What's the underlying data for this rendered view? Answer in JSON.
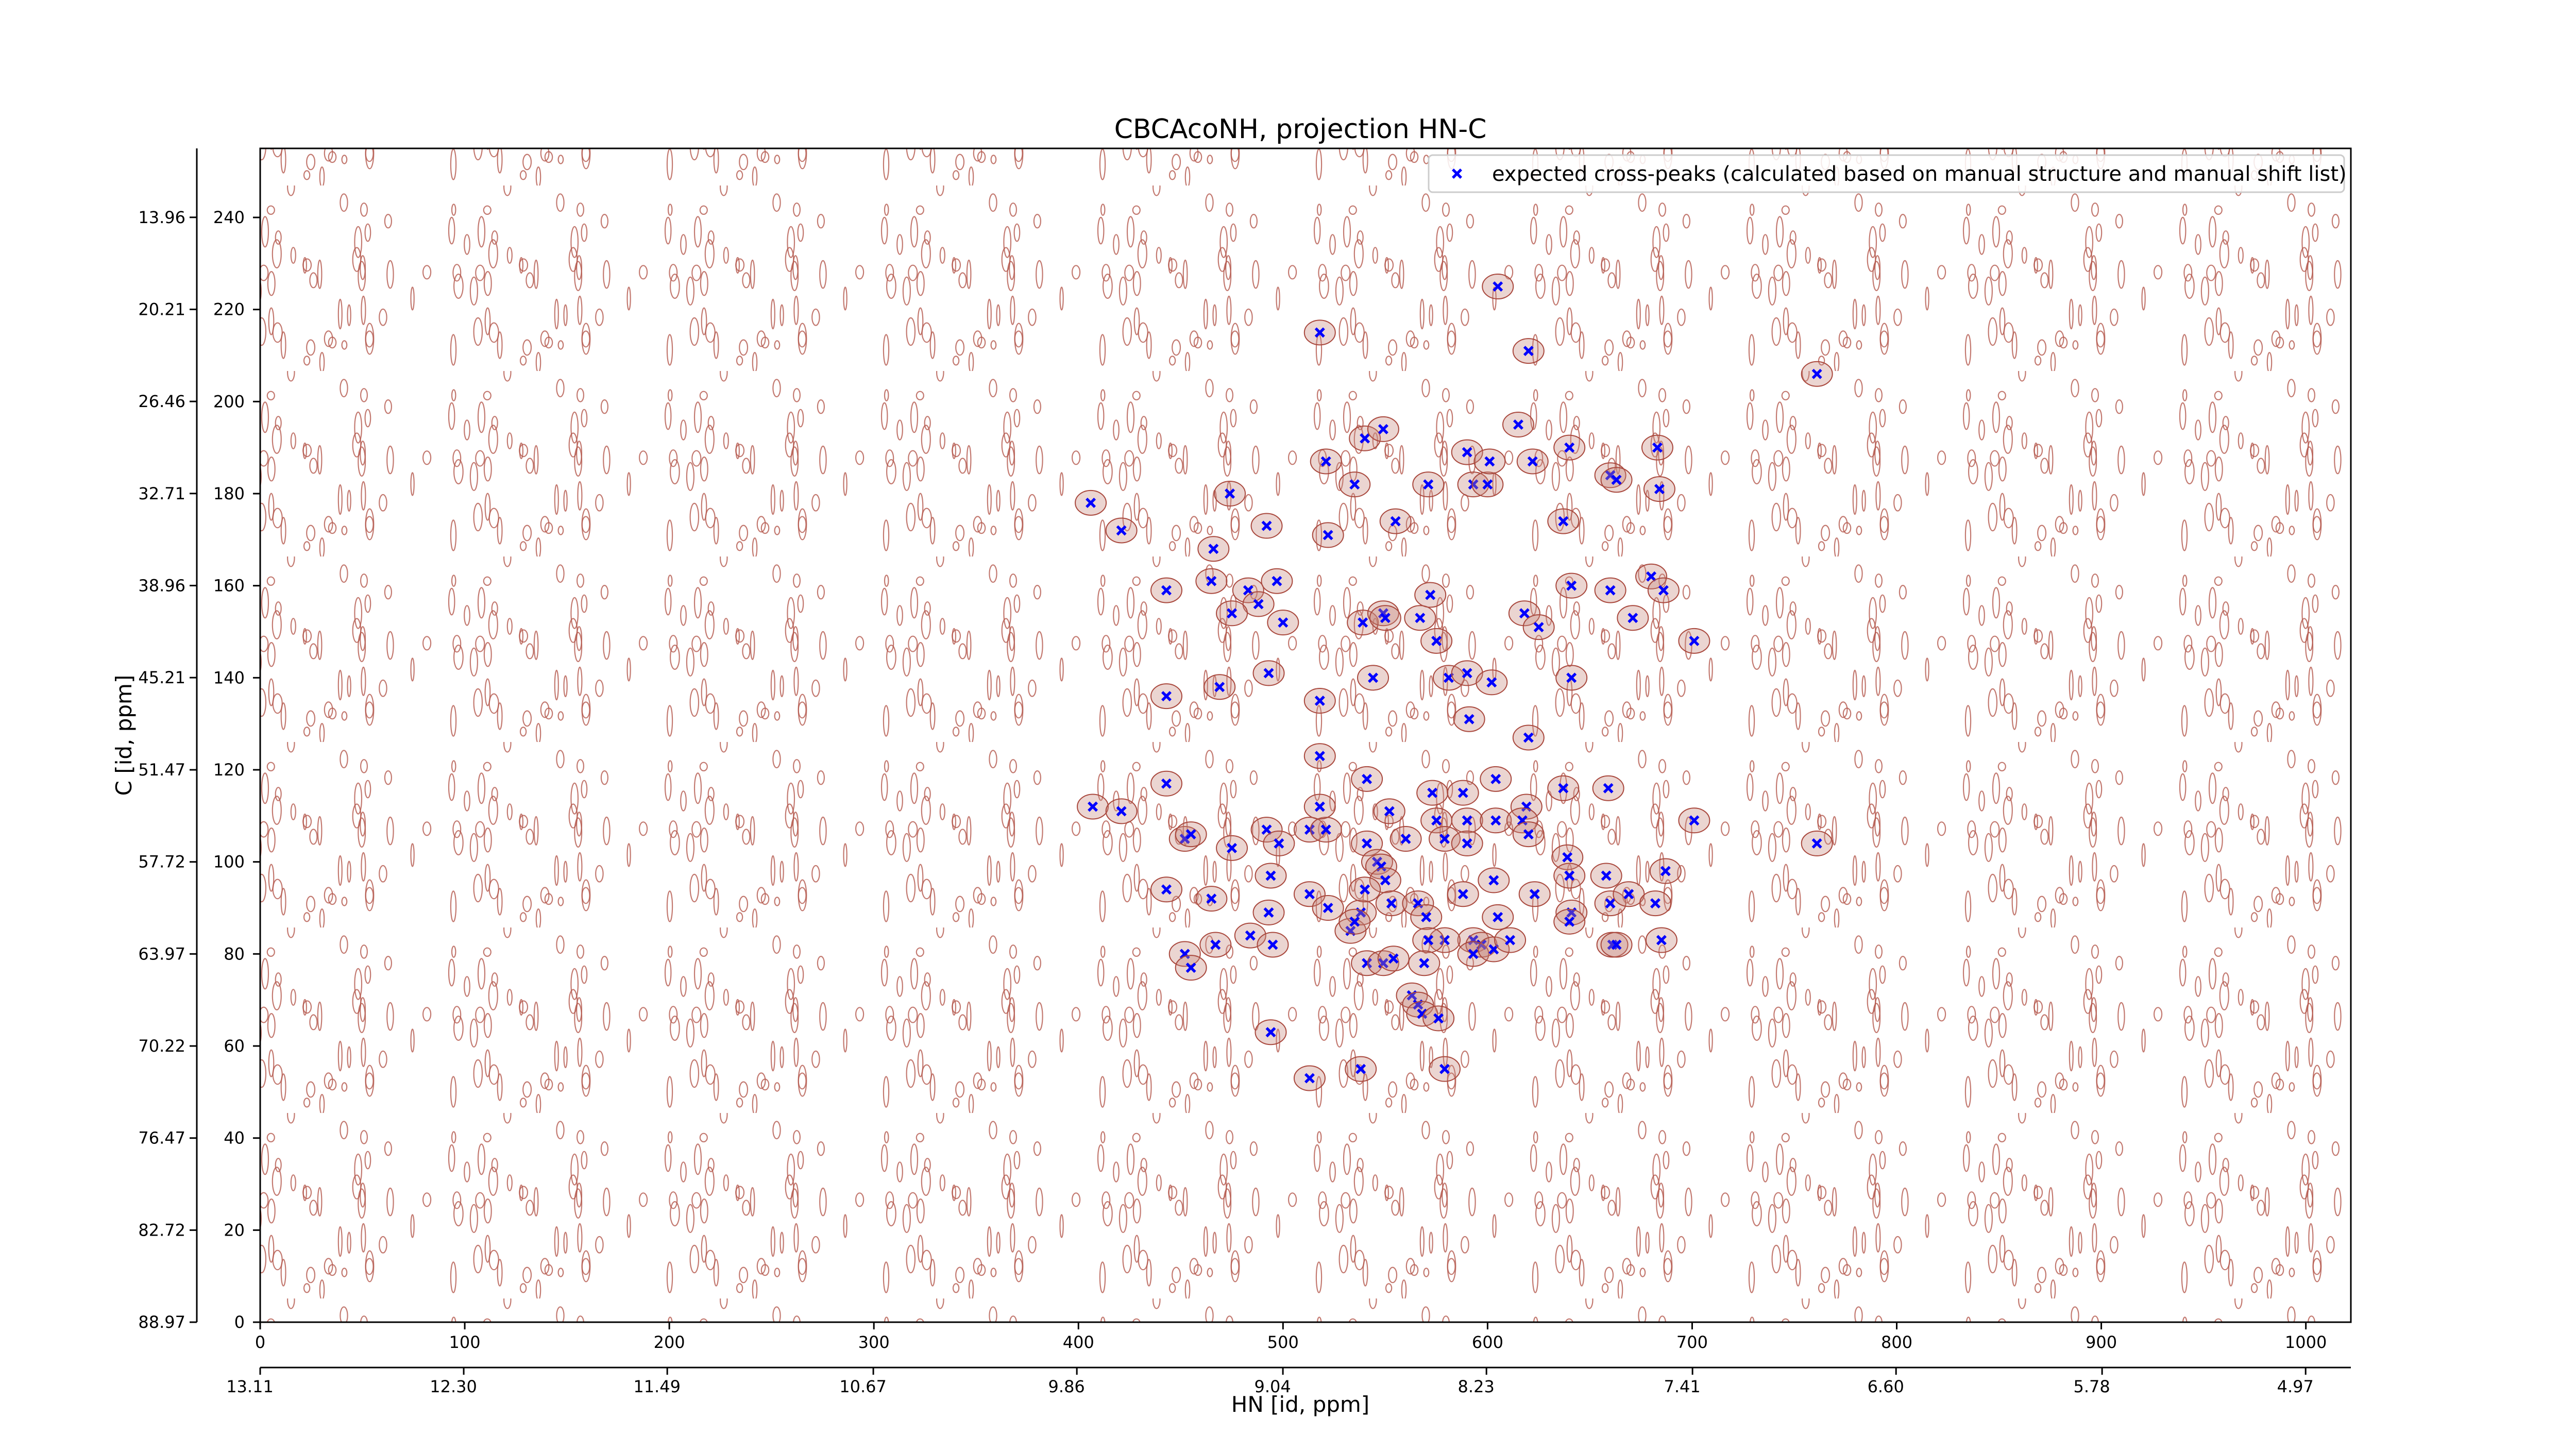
{
  "chart_data": {
    "type": "scatter",
    "title": "CBCAcoNH, projection HN-C",
    "x_label": "HN [id, ppm]",
    "y_label": "C [id, ppm]",
    "xlim": [
      0,
      1022
    ],
    "ylim": [
      0,
      255
    ],
    "xticks": [
      0,
      100,
      200,
      300,
      400,
      500,
      600,
      700,
      800,
      900,
      1000
    ],
    "yticks": [
      0,
      20,
      40,
      60,
      80,
      100,
      120,
      140,
      160,
      180,
      200,
      220,
      240
    ],
    "x2lim": [
      13.11,
      4.79
    ],
    "x2ticks": [
      13.11,
      {
        "value": 12.3,
        "label": "12.30"
      },
      11.49,
      10.67,
      9.86,
      9.04,
      8.23,
      7.41,
      {
        "value": 6.6,
        "label": "6.60"
      },
      5.78,
      4.97
    ],
    "y2lim": [
      88.97,
      9.28
    ],
    "y2ticks": [
      88.97,
      82.72,
      76.47,
      70.22,
      63.97,
      57.72,
      51.47,
      45.21,
      38.96,
      32.71,
      26.46,
      20.21,
      13.96
    ],
    "legend": "upper right",
    "series": [
      {
        "name": "expected cross-peaks (calculated based on manual structure and manual shift list)",
        "color": "#0000ff",
        "x": [
          406,
          421,
          474,
          466,
          443,
          465,
          483,
          488,
          475,
          492,
          497,
          500,
          493,
          469,
          443,
          518,
          521,
          522,
          535,
          540,
          549,
          555,
          539,
          549,
          550,
          567,
          572,
          575,
          544,
          518,
          571,
          590,
          593,
          600,
          601,
          615,
          605,
          620,
          622,
          640,
          660,
          663,
          683,
          684,
          637,
          641,
          618,
          625,
          660,
          671,
          680,
          686,
          701,
          761,
          581,
          590,
          602,
          591,
          620,
          641,
          518,
          541,
          552,
          573,
          588,
          604,
          619,
          637,
          659,
          701,
          761,
          407,
          421,
          443,
          452,
          455,
          475,
          492,
          494,
          498,
          513,
          521,
          518,
          541,
          546,
          548,
          550,
          560,
          575,
          579,
          590,
          590,
          604,
          617,
          620,
          639,
          640,
          658,
          687,
          443,
          465,
          484,
          493,
          513,
          522,
          533,
          538,
          540,
          553,
          566,
          570,
          588,
          603,
          605,
          623,
          641,
          660,
          669,
          682,
          593,
          597,
          593,
          579,
          571,
          603,
          611,
          640,
          661,
          663,
          685,
          495,
          452,
          455,
          467,
          535,
          541,
          549,
          554,
          569,
          563,
          566,
          568,
          576,
          494,
          513,
          538,
          579
        ],
        "values": [
          178,
          172,
          180,
          168,
          159,
          161,
          159,
          156,
          154,
          173,
          161,
          152,
          141,
          138,
          136,
          215,
          187,
          171,
          182,
          192,
          194,
          174,
          152,
          154,
          153,
          153,
          158,
          148,
          140,
          135,
          182,
          189,
          182,
          182,
          187,
          195,
          225,
          211,
          187,
          190,
          184,
          183,
          190,
          181,
          174,
          160,
          154,
          151,
          159,
          153,
          162,
          159,
          148,
          206,
          140,
          141,
          139,
          131,
          127,
          140,
          123,
          118,
          111,
          115,
          115,
          118,
          112,
          116,
          116,
          109,
          104,
          112,
          111,
          117,
          105,
          106,
          103,
          107,
          97,
          104,
          107,
          107,
          112,
          104,
          100,
          99,
          96,
          105,
          109,
          105,
          109,
          104,
          109,
          109,
          106,
          101,
          97,
          97,
          98,
          94,
          92,
          84,
          89,
          93,
          90,
          85,
          89,
          94,
          91,
          91,
          88,
          93,
          96,
          88,
          93,
          89,
          91,
          93,
          91,
          83,
          82,
          80,
          83,
          83,
          81,
          83,
          87,
          82,
          82,
          83,
          82,
          80,
          77,
          82,
          87,
          78,
          78,
          79,
          78,
          71,
          69,
          67,
          66,
          63,
          53,
          55,
          55
        ]
      }
    ]
  }
}
